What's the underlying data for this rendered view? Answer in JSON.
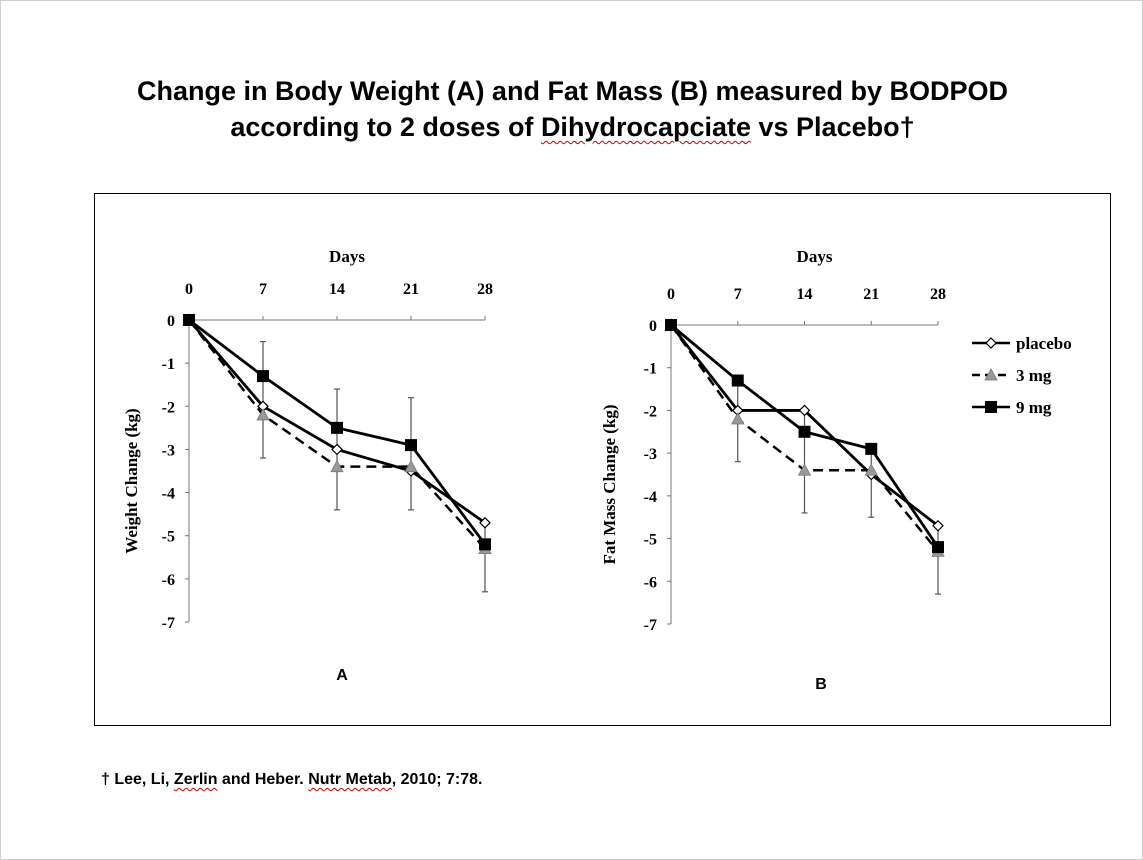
{
  "title": {
    "line1": "Change in Body Weight (A) and Fat Mass (B) measured by BODPOD",
    "line2_pre": "according to 2 doses of ",
    "line2_word": "Dihydrocapciate",
    "line2_post": " vs Placebo†"
  },
  "footnote": {
    "dagger": "† Lee, Li, ",
    "name1": "Zerlin",
    "mid": " and Heber. ",
    "journal": "Nutr Metab",
    "tail": ", 2010; 7:78."
  },
  "colors": {
    "axis": "#000000",
    "line": "#000000",
    "triangle_fill": "#999999",
    "errorbar": "#555555"
  },
  "chart_data": [
    {
      "type": "line",
      "panel_label": "A",
      "xlabel": "Days",
      "ylabel": "Weight Change (kg)",
      "x": [
        0,
        7,
        14,
        21,
        28
      ],
      "x_ticks": [
        "0",
        "7",
        "14",
        "21",
        "28"
      ],
      "y_ticks": [
        "0",
        "-1",
        "-2",
        "-3",
        "-4",
        "-5",
        "-6",
        "-7"
      ],
      "xlim": [
        0,
        28
      ],
      "ylim": [
        -7,
        0
      ],
      "series": [
        {
          "name": "placebo",
          "marker": "diamond-open",
          "dash": "solid",
          "values": [
            0,
            -2.0,
            -3.0,
            -3.5,
            -4.7
          ]
        },
        {
          "name": "3 mg",
          "marker": "triangle-gray",
          "dash": "dashed",
          "values": [
            0,
            -2.2,
            -3.4,
            -3.4,
            -5.3
          ]
        },
        {
          "name": "9 mg",
          "marker": "square-filled",
          "dash": "solid",
          "values": [
            0,
            -1.3,
            -2.5,
            -2.9,
            -5.2
          ]
        }
      ],
      "error_bars": [
        {
          "x": 7,
          "low": -3.2,
          "high": -0.5
        },
        {
          "x": 14,
          "low": -4.4,
          "high": -1.6
        },
        {
          "x": 21,
          "low": -4.4,
          "high": -1.8
        },
        {
          "x": 28,
          "low": -6.3,
          "high": -4.7
        }
      ]
    },
    {
      "type": "line",
      "panel_label": "B",
      "xlabel": "Days",
      "ylabel": "Fat Mass Change  (kg)",
      "x": [
        0,
        7,
        14,
        21,
        28
      ],
      "x_ticks": [
        "0",
        "7",
        "14",
        "21",
        "28"
      ],
      "y_ticks": [
        "0",
        "-1",
        "-2",
        "-3",
        "-4",
        "-5",
        "-6",
        "-7"
      ],
      "xlim": [
        0,
        28
      ],
      "ylim": [
        -7,
        0
      ],
      "legend": "right",
      "series": [
        {
          "name": "placebo",
          "marker": "diamond-open",
          "dash": "solid",
          "values": [
            0,
            -2.0,
            -2.0,
            -3.5,
            -4.7
          ]
        },
        {
          "name": "3 mg",
          "marker": "triangle-gray",
          "dash": "dashed",
          "values": [
            0,
            -2.2,
            -3.4,
            -3.4,
            -5.3
          ]
        },
        {
          "name": "9 mg",
          "marker": "square-filled",
          "dash": "solid",
          "values": [
            0,
            -1.3,
            -2.5,
            -2.9,
            -5.2
          ]
        }
      ],
      "error_bars": [
        {
          "x": 7,
          "low": -3.2,
          "high": -1.3
        },
        {
          "x": 14,
          "low": -4.4,
          "high": -2.0
        },
        {
          "x": 21,
          "low": -4.5,
          "high": -3.0
        },
        {
          "x": 28,
          "low": -6.3,
          "high": -4.7
        }
      ]
    }
  ]
}
